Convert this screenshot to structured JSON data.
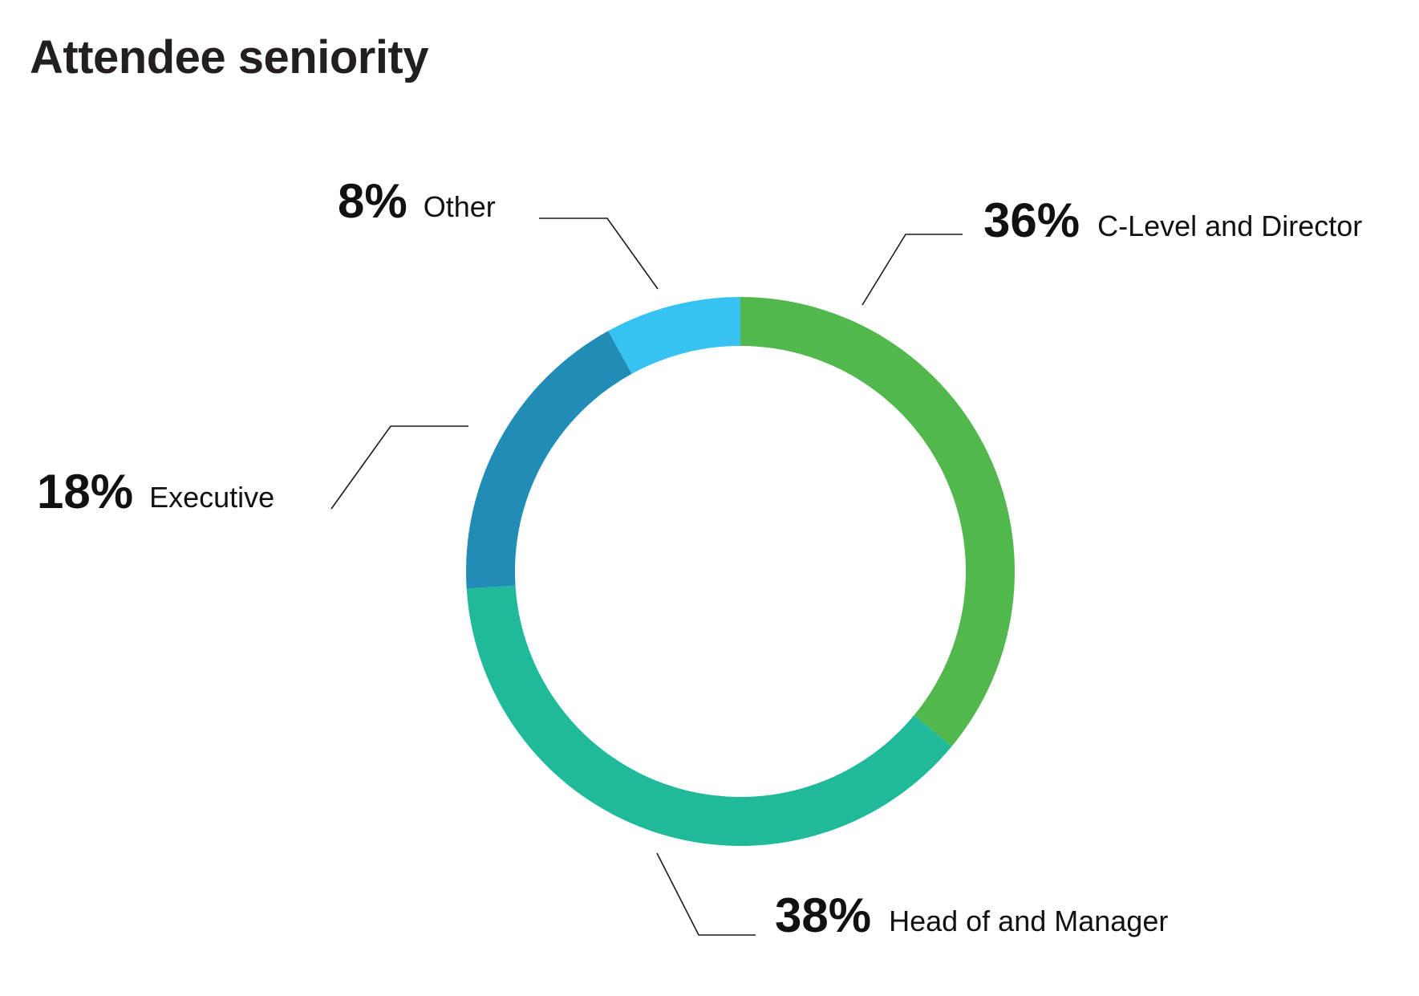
{
  "chart_data": {
    "type": "pie",
    "variant": "donut",
    "title": "Attendee seniority",
    "categories": [
      "C-Level and Director",
      "Head of and Manager",
      "Executive",
      "Other"
    ],
    "values": [
      36,
      38,
      18,
      8
    ],
    "value_labels": [
      "36%",
      "38%",
      "18%",
      "8%"
    ],
    "colors": [
      "#52b84d",
      "#20ba9b",
      "#218db6",
      "#37c3f1"
    ],
    "start": "12 o'clock",
    "direction": "clockwise",
    "legend": "none (direct labels with leader lines)"
  }
}
